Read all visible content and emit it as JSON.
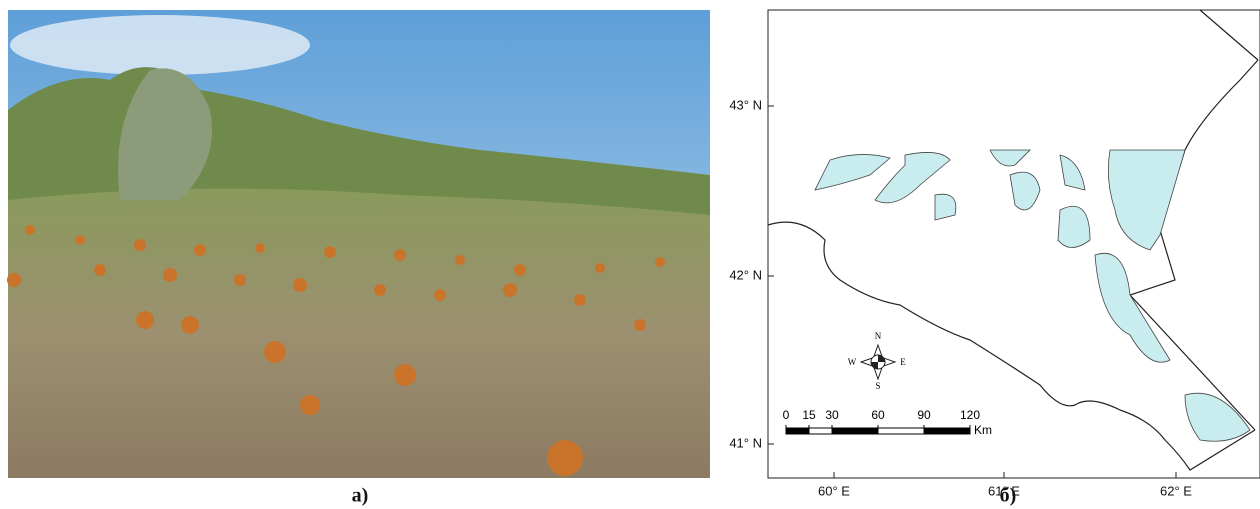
{
  "panels": [
    {
      "label": "а)"
    },
    {
      "label": "б)",
      "map": {
        "lat_labels": [
          "43° N",
          "42° N",
          "41° N"
        ],
        "lon_labels": [
          "60° E",
          "61° E",
          "62° E"
        ],
        "compass": {
          "n": "N",
          "s": "S",
          "e": "E",
          "w": "W"
        },
        "scale_bar": {
          "ticks": [
            0,
            15,
            30,
            60,
            90,
            120
          ],
          "unit": "Km"
        }
      }
    }
  ]
}
